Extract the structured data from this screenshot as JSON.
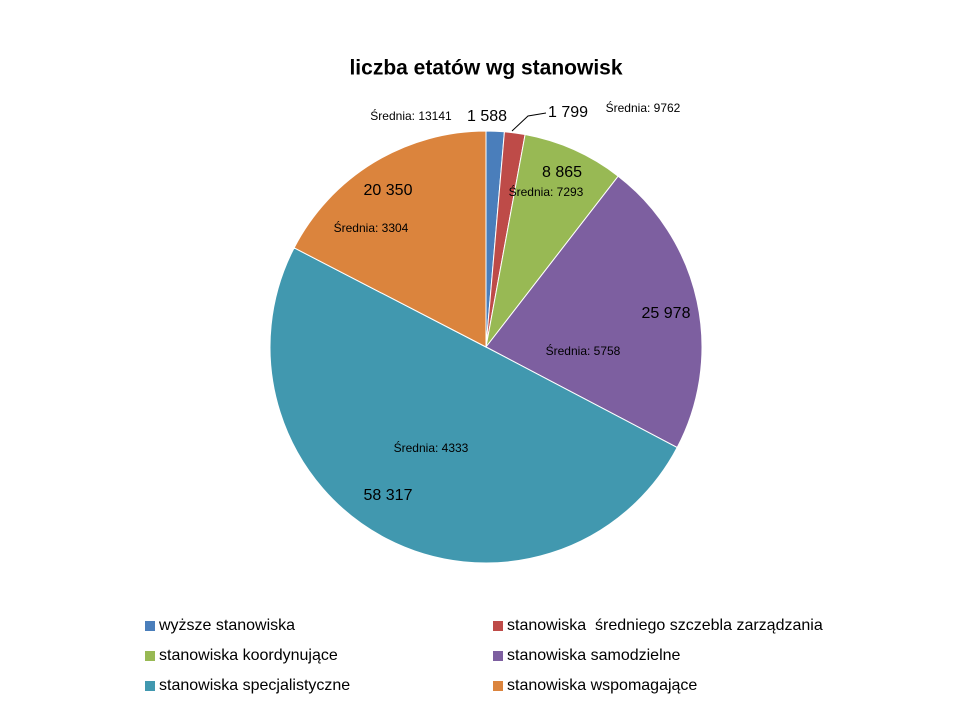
{
  "chart_data": {
    "type": "pie",
    "title": "liczba etatów wg stanowisk",
    "categories": [
      "wyższe stanowiska",
      "stanowiska  średniego szczebla zarządzania",
      "stanowiska koordynujące",
      "stanowiska samodzielne",
      "stanowiska specjalistyczne",
      "stanowiska wspomagające"
    ],
    "values": [
      1588,
      1799,
      8865,
      25978,
      58317,
      20350
    ],
    "value_labels": [
      "1 588",
      "1 799",
      "8 865",
      "25 978",
      "58 317",
      "20 350"
    ],
    "colors": [
      "#4a7ebb",
      "#be4b48",
      "#98b954",
      "#7d5fa0",
      "#4198af",
      "#db843d"
    ],
    "annotations": [
      "Średnia: 13141",
      "Średnia: 9762",
      "Średnia: 7293",
      "Średnia: 5758",
      "Średnia: 4333",
      "Średnia: 3304"
    ]
  }
}
